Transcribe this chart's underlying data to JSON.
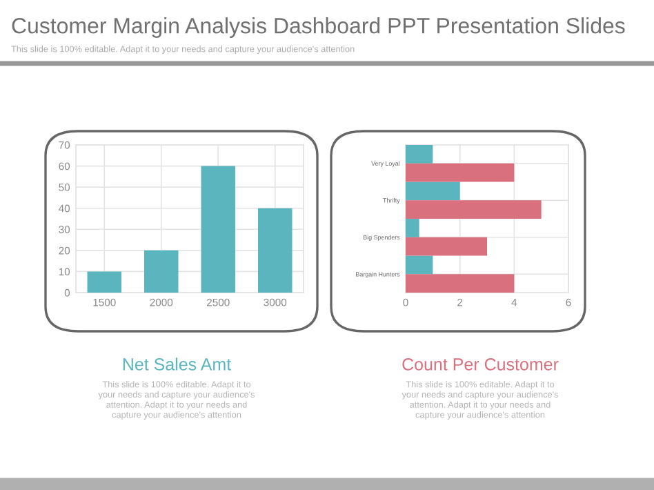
{
  "chart_data": [
    {
      "type": "other",
      "title": "Customer Margin Analysis Dashboard PPT Presentation Slides",
      "subtitle": "This slide is 100% editable. Adapt it to your needs and capture your audience's attention"
    },
    {
      "type": "bar",
      "title": "Net Sales Amt",
      "annotations": [
        "This slide is 100% editable. Adapt it to\nyour needs and capture your audience's\nattention. Adapt it to your needs and\ncapture your audience's attention"
      ],
      "categories": [
        "1500",
        "2000",
        "2500",
        "3000"
      ],
      "values": [
        10,
        20,
        60,
        40
      ],
      "color": "#5bb5bf",
      "ylim": [
        0,
        70
      ],
      "yticks": [
        0,
        10,
        20,
        30,
        40,
        50,
        60,
        70
      ],
      "grid": true
    },
    {
      "type": "bar",
      "orientation": "horizontal",
      "title": "Count Per Customer",
      "annotations": [
        "This slide is 100% editable. Adapt it to\nyour needs and capture your audience's\nattention. Adapt it to your needs and\ncapture your audience's attention"
      ],
      "categories": [
        "Very Loyal",
        "Thrifty",
        "Big Spenders",
        "Bargain Hunters"
      ],
      "series": [
        {
          "color": "#5bb5bf",
          "values": [
            1,
            2,
            0.5,
            1
          ]
        },
        {
          "color": "#d9707e",
          "values": [
            4,
            5,
            3,
            4
          ]
        }
      ],
      "xlim": [
        0,
        6
      ],
      "xticks": [
        0,
        2,
        4,
        6
      ],
      "grid": true
    }
  ]
}
